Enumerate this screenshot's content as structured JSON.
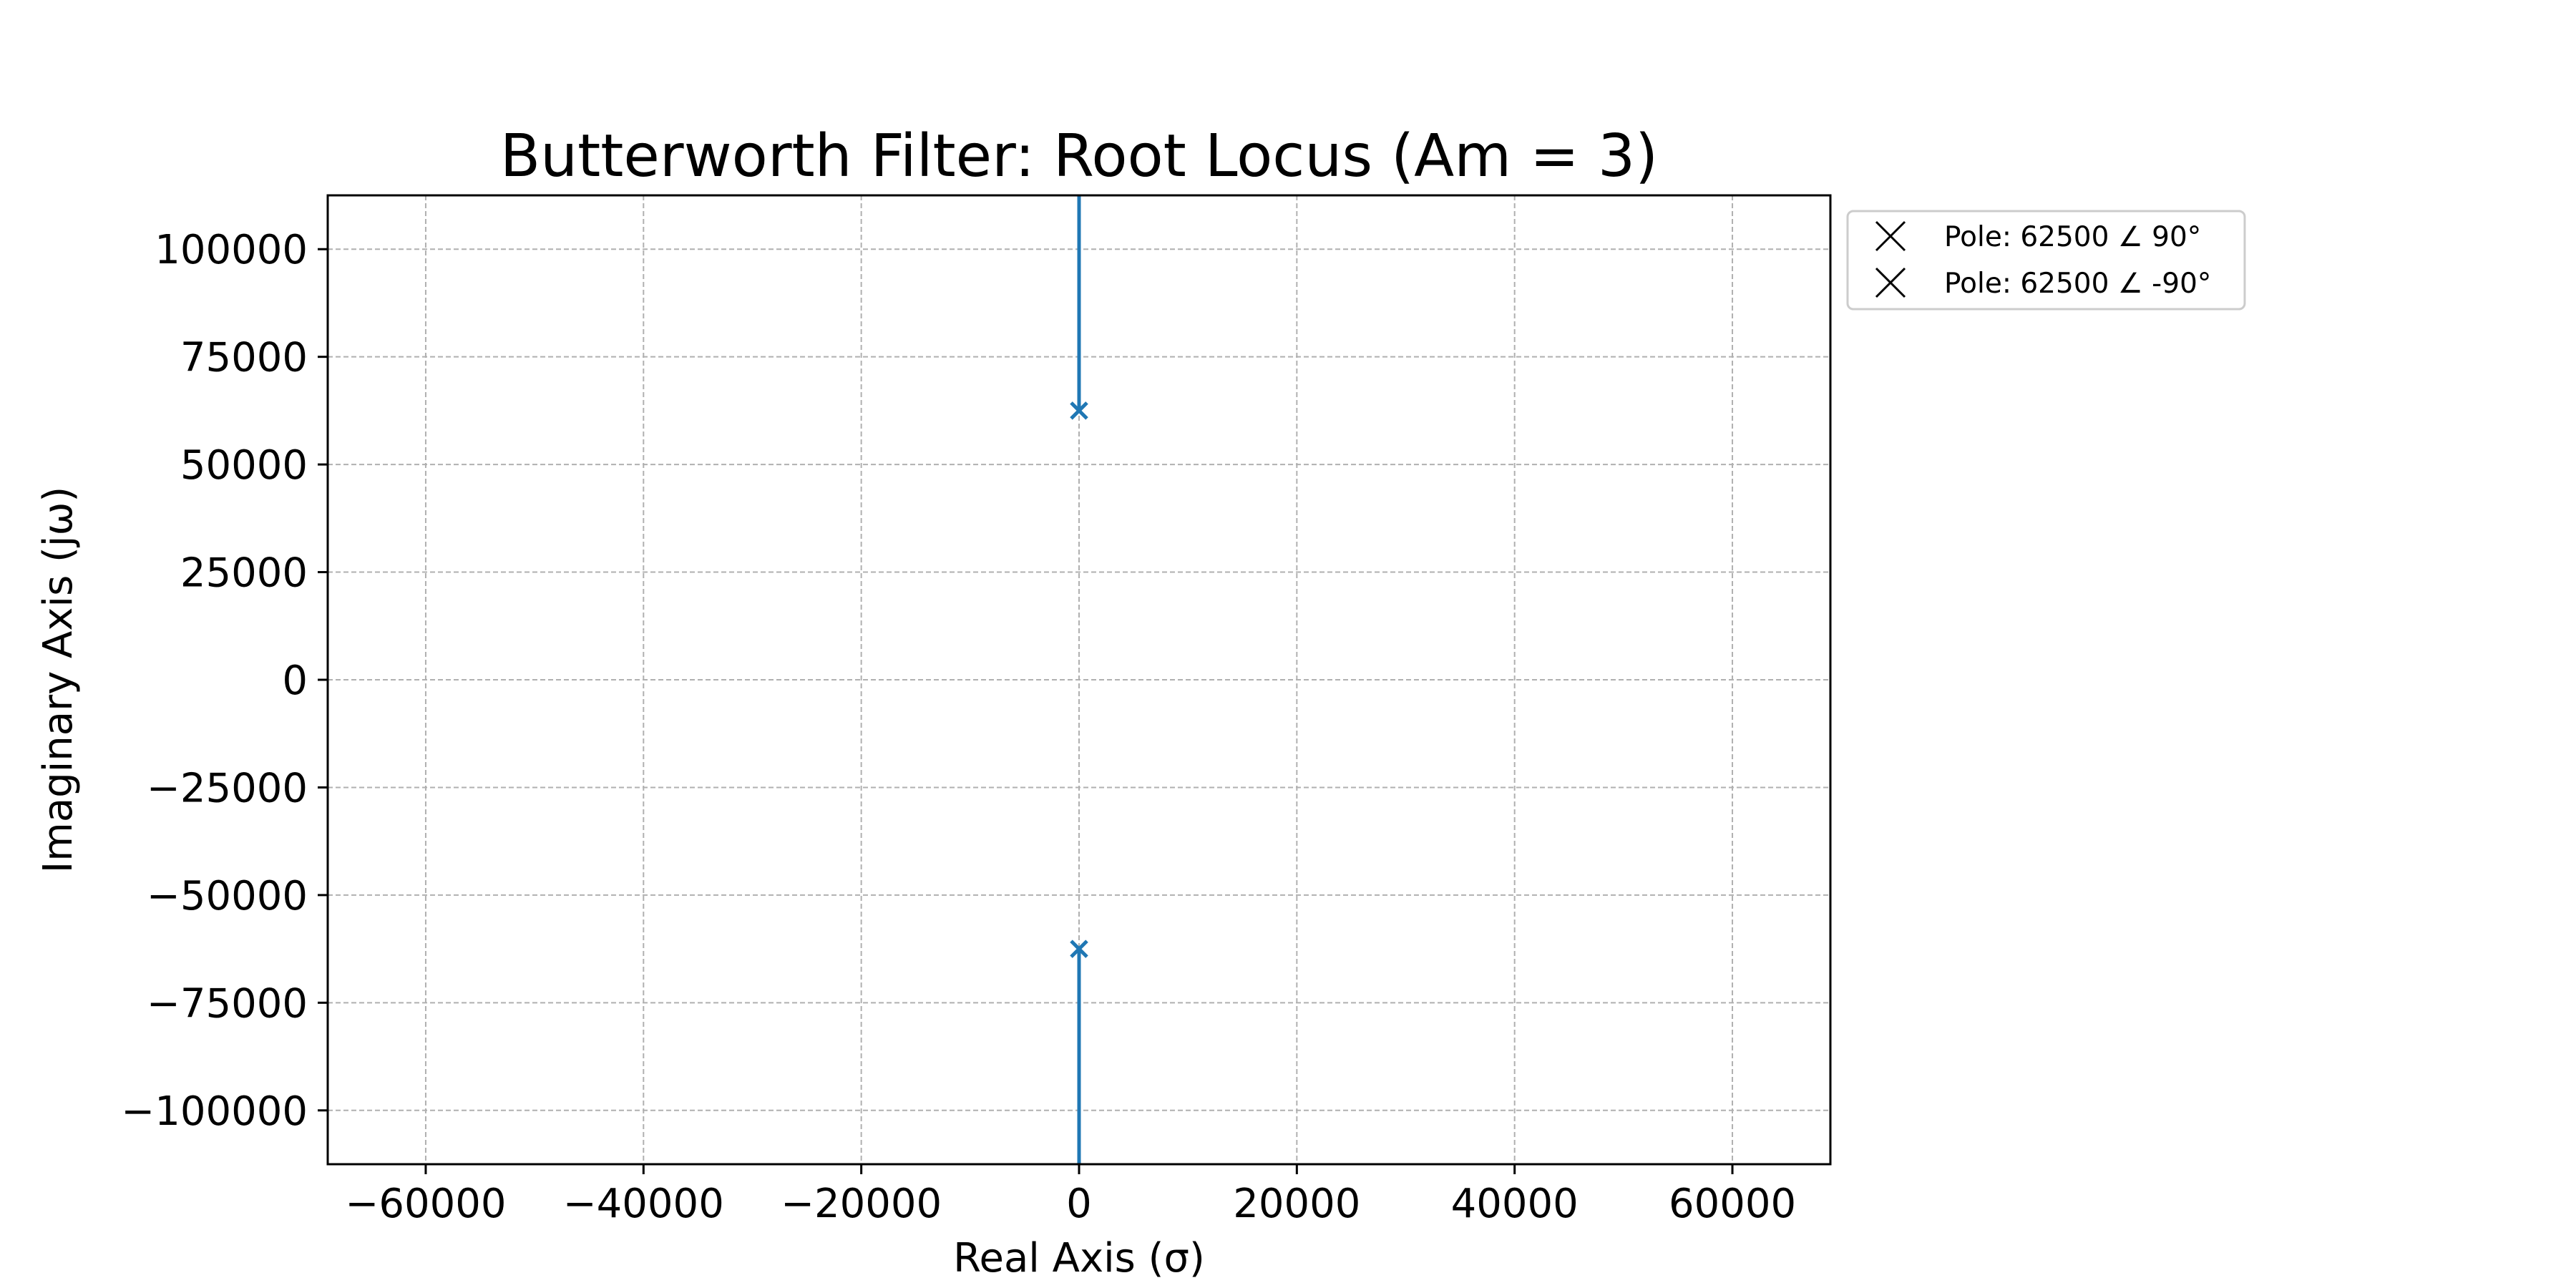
{
  "chart_data": {
    "type": "scatter",
    "title": "Butterworth Filter: Root Locus (Am = 3)",
    "xlabel": "Real Axis (σ)",
    "ylabel": "Imaginary Axis (jω)",
    "xlim": [
      -69000,
      69000
    ],
    "ylim": [
      -112500,
      112500
    ],
    "xticks": [
      -60000,
      -40000,
      -20000,
      0,
      20000,
      40000,
      60000
    ],
    "xtick_labels": [
      "−60000",
      "−40000",
      "−20000",
      "0",
      "20000",
      "40000",
      "60000"
    ],
    "yticks": [
      100000,
      75000,
      50000,
      25000,
      0,
      -25000,
      -50000,
      -75000,
      -100000
    ],
    "ytick_labels": [
      "100000",
      "75000",
      "50000",
      "25000",
      "0",
      "−25000",
      "−50000",
      "−75000",
      "−100000"
    ],
    "grid": true,
    "legend_position": "outside top-right",
    "series_color": "#1f77b4",
    "locus_branches": [
      {
        "x": [
          0,
          0
        ],
        "y": [
          62500,
          112500
        ]
      },
      {
        "x": [
          0,
          0
        ],
        "y": [
          -62500,
          -112500
        ]
      }
    ],
    "poles": [
      {
        "x": 0,
        "y": 62500,
        "label": "Pole: 62500 ∠ 90°"
      },
      {
        "x": 0,
        "y": -62500,
        "label": "Pole: 62500 ∠ -90°"
      }
    ]
  }
}
